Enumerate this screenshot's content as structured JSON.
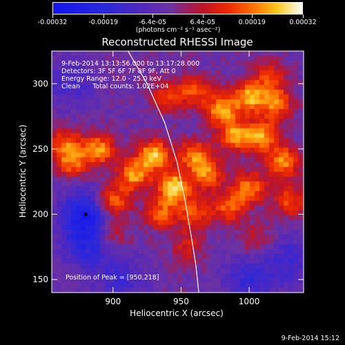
{
  "chart_data": {
    "type": "heatmap",
    "title": "Reconstructed RHESSI Image",
    "xlabel": "Heliocentric X (arcsec)",
    "ylabel": "Heliocentric Y (arcsec)",
    "xlim": [
      855,
      1040
    ],
    "ylim": [
      140,
      325
    ],
    "x_ticks": [
      "900",
      "950",
      "1000"
    ],
    "x_tick_values": [
      900,
      950,
      1000
    ],
    "y_ticks": [
      "150",
      "200",
      "250",
      "300"
    ],
    "y_tick_values": [
      150,
      200,
      250,
      300
    ],
    "colorbar": {
      "range": [
        -0.00032,
        0.00032
      ],
      "tick_labels": [
        "-0.00032",
        "-0.00019",
        "-6.4e-05",
        "6.4e-05",
        "0.00019",
        "0.00032"
      ],
      "tick_values": [
        -0.00032,
        -0.00019,
        -6.4e-05,
        6.4e-05,
        0.00019,
        0.00032
      ],
      "unit_label": "(photons cm⁻² s⁻¹ asec⁻²)"
    },
    "annotations": [
      "9-Feb-2014 13:13:56.000 to 13:17:28.000",
      "Detectors: 3F 5F 6F 7F 8F 9F, Att 0",
      "Energy Range: 12.0 - 25.0 keV",
      "Clean      Total counts: 1.02E+04"
    ],
    "peak_label": "Position of Peak = [950,218]",
    "peak": [
      950,
      218
    ],
    "limb_curve": [
      [
        911,
        325
      ],
      [
        925,
        300
      ],
      [
        938,
        270
      ],
      [
        947,
        240
      ],
      [
        953,
        210
      ],
      [
        958,
        180
      ],
      [
        961,
        160
      ],
      [
        963,
        140
      ]
    ],
    "hotspots": [
      {
        "x": 945,
        "y": 220,
        "value": 1.0
      },
      {
        "x": 930,
        "y": 245,
        "value": 0.9
      },
      {
        "x": 915,
        "y": 230,
        "value": 0.75
      },
      {
        "x": 900,
        "y": 210,
        "value": 0.7
      },
      {
        "x": 890,
        "y": 250,
        "value": 0.75
      },
      {
        "x": 870,
        "y": 240,
        "value": 0.65
      },
      {
        "x": 865,
        "y": 255,
        "value": 0.55
      },
      {
        "x": 960,
        "y": 245,
        "value": 0.7
      },
      {
        "x": 970,
        "y": 230,
        "value": 0.65
      },
      {
        "x": 980,
        "y": 280,
        "value": 0.8
      },
      {
        "x": 990,
        "y": 260,
        "value": 0.75
      },
      {
        "x": 1000,
        "y": 290,
        "value": 0.8
      },
      {
        "x": 1010,
        "y": 260,
        "value": 0.75
      },
      {
        "x": 1020,
        "y": 285,
        "value": 0.7
      },
      {
        "x": 1025,
        "y": 240,
        "value": 0.75
      },
      {
        "x": 1000,
        "y": 220,
        "value": 0.7
      },
      {
        "x": 985,
        "y": 205,
        "value": 0.6
      },
      {
        "x": 960,
        "y": 295,
        "value": 0.55
      },
      {
        "x": 940,
        "y": 290,
        "value": 0.5
      },
      {
        "x": 1015,
        "y": 305,
        "value": 0.45
      },
      {
        "x": 960,
        "y": 200,
        "value": 0.55
      },
      {
        "x": 935,
        "y": 200,
        "value": 0.6
      },
      {
        "x": 1030,
        "y": 210,
        "value": 0.55
      },
      {
        "x": 955,
        "y": 175,
        "value": 0.35
      },
      {
        "x": 900,
        "y": 185,
        "value": 0.35
      },
      {
        "x": 1005,
        "y": 180,
        "value": 0.3
      }
    ],
    "coldspots": [
      {
        "x": 880,
        "y": 200,
        "value": -0.7
      },
      {
        "x": 880,
        "y": 175,
        "value": -0.45
      },
      {
        "x": 905,
        "y": 150,
        "value": -0.35
      },
      {
        "x": 1000,
        "y": 150,
        "value": -0.4
      },
      {
        "x": 1030,
        "y": 165,
        "value": -0.35
      },
      {
        "x": 870,
        "y": 300,
        "value": -0.3
      }
    ]
  },
  "footer": {
    "timestamp": "9-Feb-2014 15:12"
  }
}
